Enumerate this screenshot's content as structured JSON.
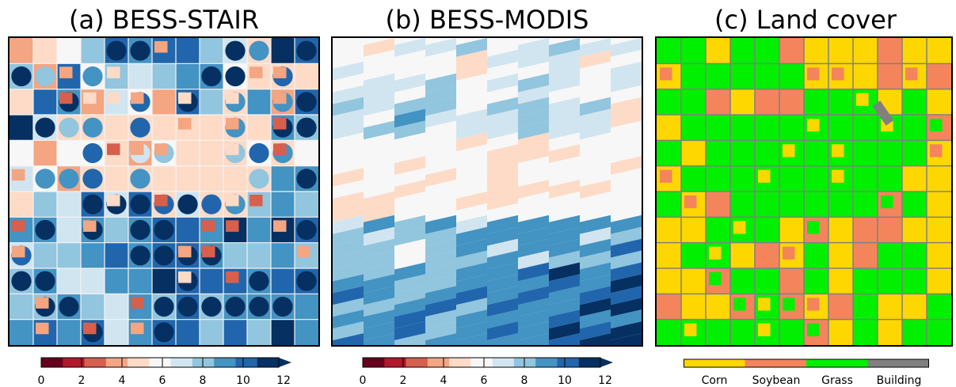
{
  "panels": [
    {
      "title": "(a) BESS-STAIR",
      "kind": "continuous"
    },
    {
      "title": "(b) BESS-MODIS",
      "kind": "continuous"
    },
    {
      "title": "(c) Land cover",
      "kind": "categorical"
    }
  ],
  "colorbar": {
    "ticks": [
      "0",
      "2",
      "4",
      "6",
      "8",
      "10",
      "12"
    ],
    "colormap": [
      "#67001f",
      "#b2182b",
      "#d6604d",
      "#f4a582",
      "#fddbc7",
      "#f7f7f7",
      "#d1e5f0",
      "#92c5de",
      "#4393c3",
      "#2166ac",
      "#053061"
    ],
    "range": [
      0,
      12
    ],
    "extend": "max"
  },
  "landcover_legend": [
    {
      "label": "Corn",
      "color": "#ffd700"
    },
    {
      "label": "Soybean",
      "color": "#f4845c"
    },
    {
      "label": "Grass",
      "color": "#00f000"
    },
    {
      "label": "Building",
      "color": "#808080"
    }
  ],
  "chart_data": [
    {
      "type": "heatmap",
      "title": "(a) BESS-STAIR",
      "colorbar_range": [
        0,
        12
      ],
      "colorbar_ticks": [
        0,
        2,
        4,
        6,
        8,
        10,
        12
      ],
      "colormap": "RdBu"
    },
    {
      "type": "heatmap",
      "title": "(b) BESS-MODIS",
      "colorbar_range": [
        0,
        12
      ],
      "colorbar_ticks": [
        0,
        2,
        4,
        6,
        8,
        10,
        12
      ],
      "colormap": "RdBu"
    },
    {
      "type": "heatmap",
      "title": "(c) Land cover",
      "categories": [
        "Corn",
        "Soybean",
        "Grass",
        "Building"
      ]
    }
  ]
}
